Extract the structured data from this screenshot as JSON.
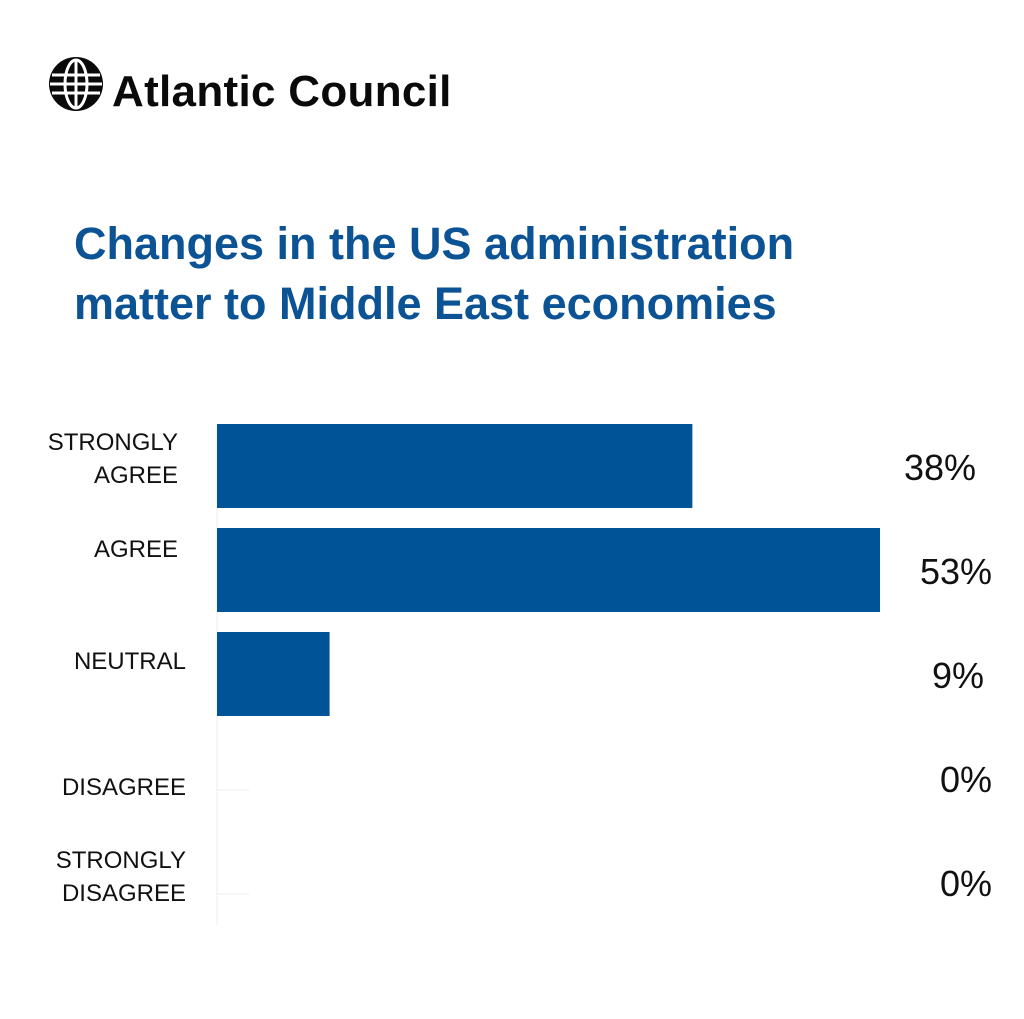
{
  "brand": {
    "name": "Atlantic Council",
    "logo_icon": "globe-icon"
  },
  "colors": {
    "bar": "#005397",
    "title": "#0b5394",
    "text": "#111111",
    "axis": "#eeeeee"
  },
  "chart_data": {
    "type": "bar",
    "orientation": "horizontal",
    "title": "Changes in the US administration matter to Middle East economies",
    "title_lines": [
      "Changes in the US administration",
      "matter to Middle East economies"
    ],
    "categories": [
      [
        "STRONGLY",
        "AGREE"
      ],
      [
        "AGREE"
      ],
      [
        "NEUTRAL"
      ],
      [
        "DISAGREE"
      ],
      [
        "STRONGLY",
        "DISAGREE"
      ]
    ],
    "values": [
      38,
      53,
      9,
      0,
      0
    ],
    "value_labels": [
      "38%",
      "53%",
      "9%",
      "0%",
      "0%"
    ],
    "xlim": [
      0,
      53
    ],
    "grid": false,
    "legend": "none"
  }
}
